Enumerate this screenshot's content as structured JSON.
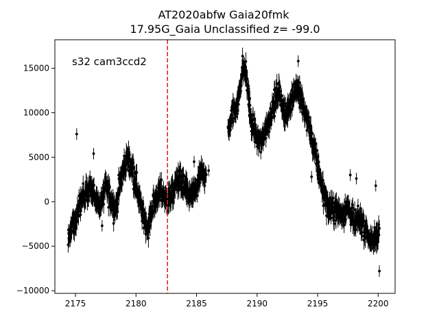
{
  "chart_data": {
    "type": "scatter",
    "title_line1": "AT2020abfw  Gaia20fmk",
    "title_line2": "17.95G_Gaia Unclassified z= -99.0",
    "annotation": "s32 cam3ccd2",
    "xlabel": "",
    "ylabel": "",
    "xlim": [
      2173.3,
      2201.4
    ],
    "ylim": [
      -10300,
      18200
    ],
    "xticks": [
      2175,
      2180,
      2185,
      2190,
      2195,
      2200
    ],
    "yticks": [
      -10000,
      -5000,
      0,
      5000,
      10000,
      15000
    ],
    "marker_color": "#000000",
    "errorbar": true,
    "vline": {
      "x": 2182.6,
      "color": "#d62728",
      "style": "dashed"
    },
    "segments": [
      {
        "x_start": 2174.4,
        "x_end": 2185.8,
        "profile": [
          [
            2174.4,
            -4200
          ],
          [
            2174.8,
            -2500
          ],
          [
            2175.3,
            -400
          ],
          [
            2175.8,
            800
          ],
          [
            2176.2,
            1600
          ],
          [
            2176.6,
            200
          ],
          [
            2177.0,
            -700
          ],
          [
            2177.5,
            1800
          ],
          [
            2177.9,
            400
          ],
          [
            2178.3,
            -900
          ],
          [
            2178.8,
            2800
          ],
          [
            2179.3,
            5000
          ],
          [
            2179.7,
            3800
          ],
          [
            2180.1,
            1500
          ],
          [
            2180.6,
            -1800
          ],
          [
            2181.0,
            -2800
          ],
          [
            2181.5,
            0
          ],
          [
            2182.0,
            1200
          ],
          [
            2182.5,
            200
          ],
          [
            2183.0,
            800
          ],
          [
            2183.5,
            2800
          ],
          [
            2184.0,
            1500
          ],
          [
            2184.5,
            500
          ],
          [
            2185.0,
            1500
          ],
          [
            2185.4,
            3200
          ],
          [
            2185.8,
            3000
          ]
        ]
      },
      {
        "x_start": 2187.6,
        "x_end": 2200.1,
        "profile": [
          [
            2187.6,
            7500
          ],
          [
            2188.0,
            10000
          ],
          [
            2188.4,
            11000
          ],
          [
            2188.8,
            15000
          ],
          [
            2189.1,
            14500
          ],
          [
            2189.5,
            9000
          ],
          [
            2189.9,
            7500
          ],
          [
            2190.3,
            6500
          ],
          [
            2190.8,
            8500
          ],
          [
            2191.3,
            10500
          ],
          [
            2191.8,
            12500
          ],
          [
            2192.3,
            9500
          ],
          [
            2192.8,
            11500
          ],
          [
            2193.3,
            13000
          ],
          [
            2193.8,
            10500
          ],
          [
            2194.2,
            9000
          ],
          [
            2194.6,
            6500
          ],
          [
            2195.0,
            4000
          ],
          [
            2195.5,
            1000
          ],
          [
            2196.0,
            -1000
          ],
          [
            2196.5,
            -800
          ],
          [
            2197.0,
            -1500
          ],
          [
            2197.5,
            -500
          ],
          [
            2198.0,
            -2500
          ],
          [
            2198.5,
            -2000
          ],
          [
            2199.0,
            -3200
          ],
          [
            2199.5,
            -4800
          ],
          [
            2200.1,
            -3000
          ]
        ]
      }
    ],
    "outliers": [
      [
        2175.1,
        7600
      ],
      [
        2176.5,
        5400
      ],
      [
        2177.2,
        -2700
      ],
      [
        2181.0,
        -2600
      ],
      [
        2184.8,
        4500
      ],
      [
        2186.0,
        3500
      ],
      [
        2189.3,
        13000
      ],
      [
        2190.6,
        7000
      ],
      [
        2193.4,
        15800
      ],
      [
        2194.5,
        2800
      ],
      [
        2197.7,
        3000
      ],
      [
        2198.2,
        2600
      ],
      [
        2199.8,
        1800
      ],
      [
        2200.1,
        -7800
      ]
    ]
  }
}
